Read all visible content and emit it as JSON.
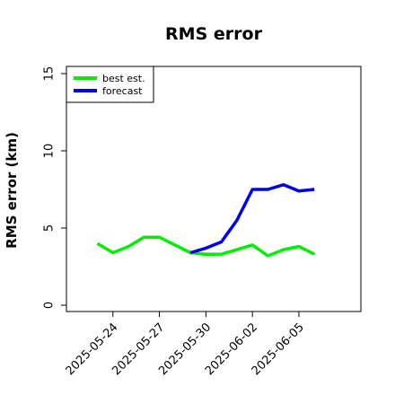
{
  "chart_data": {
    "type": "line",
    "title": "RMS error",
    "xlabel": "",
    "ylabel": "RMS error (km)",
    "ylim": [
      0,
      15
    ],
    "yticks": [
      0,
      5,
      10,
      15
    ],
    "xlim": [
      "2025-05-21",
      "2025-06-09"
    ],
    "xticks": [
      "2025-05-24",
      "2025-05-27",
      "2025-05-30",
      "2025-06-02",
      "2025-06-05"
    ],
    "grid": false,
    "legend": "top-left",
    "series": [
      {
        "name": "best est.",
        "color": "#00ee00",
        "points": [
          [
            "2025-05-23",
            4.0
          ],
          [
            "2025-05-24",
            3.4
          ],
          [
            "2025-05-25",
            3.8
          ],
          [
            "2025-05-26",
            4.4
          ],
          [
            "2025-05-27",
            4.4
          ],
          [
            "2025-05-28",
            3.9
          ],
          [
            "2025-05-29",
            3.4
          ],
          [
            "2025-05-30",
            3.3
          ],
          [
            "2025-05-31",
            3.3
          ],
          [
            "2025-06-01",
            3.6
          ],
          [
            "2025-06-02",
            3.9
          ],
          [
            "2025-06-03",
            3.2
          ],
          [
            "2025-06-04",
            3.6
          ],
          [
            "2025-06-05",
            3.8
          ],
          [
            "2025-06-06",
            3.3
          ]
        ]
      },
      {
        "name": "forecast",
        "color": "#0000ee",
        "points": [
          [
            "2025-05-29",
            3.4
          ],
          [
            "2025-05-30",
            3.7
          ],
          [
            "2025-05-31",
            4.1
          ],
          [
            "2025-06-01",
            5.5
          ],
          [
            "2025-06-02",
            7.5
          ],
          [
            "2025-06-03",
            7.5
          ],
          [
            "2025-06-04",
            7.8
          ],
          [
            "2025-06-05",
            7.4
          ],
          [
            "2025-06-06",
            7.5
          ]
        ]
      }
    ]
  }
}
